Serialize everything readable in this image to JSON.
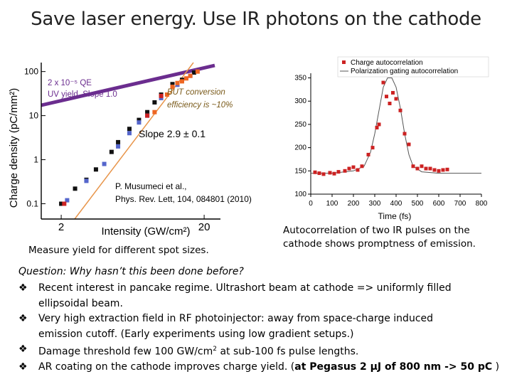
{
  "slide": {
    "title": "Save laser energy. Use IR photons on the cathode",
    "left_caption": "Measure yield for different spot sizes.",
    "right_caption_line1": "Autocorrelation of two IR pulses on the",
    "right_caption_line2": "cathode shows promptness of emission.",
    "question": "Question: Why hasn’t this been done before?",
    "bullet_marker": "❖",
    "bullets": [
      {
        "line1": "Recent interest in pancake regime. Ultrashort beam at cathode => uniformly filled",
        "line2": "ellipsoidal beam."
      },
      {
        "line1": "Very high extraction field in RF photoinjector: away from space-charge induced",
        "line2": "emission cutoff. (Early experiments using low gradient setups.)"
      },
      {
        "line1a": "Damage threshold few 100 GW/cm",
        "sup": "2",
        "line1b": " at sub-100 fs pulse lengths."
      },
      {
        "line1a": "AR coating on the cathode improves charge yield. (",
        "bold": "at Pegasus 2 μJ of 800 nm -> 50 pC",
        "line1b": " )"
      }
    ]
  },
  "chart_data": [
    {
      "type": "scatter",
      "xlabel": "Intensity (GW/cm²)",
      "ylabel": "Charge density (pC/mm²)",
      "xscale": "log",
      "yscale": "log",
      "x_tick_labels": [
        "2",
        "20"
      ],
      "y_tick_labels": [
        "100",
        "10",
        "1",
        "0.1"
      ],
      "ylim": [
        0.05,
        130
      ],
      "annotations": {
        "qe_line1": "2 x 10⁻⁵ QE",
        "qe_line2": "UV yield. Slope 1.0",
        "slope_text": "Slope 2.9 ± 0.1",
        "conv_line1": "BUT conversion",
        "conv_line2": "efficiency is ~10%",
        "ref_line1": "P. Musumeci et al.,",
        "ref_line2": "Phys. Rev. Lett, 104, 084801 (2010)"
      },
      "fit_lines": [
        {
          "name": "UV yield slope 1.0",
          "color": "#6b2d8f"
        },
        {
          "name": "Slope 2.9",
          "color": "#e8954a"
        }
      ],
      "series": [
        {
          "group": "black",
          "color": "#111111",
          "points": [
            [
              2.0,
              0.1
            ],
            [
              2.5,
              0.22
            ],
            [
              3,
              0.35
            ],
            [
              3.5,
              0.6
            ],
            [
              4.5,
              1.5
            ],
            [
              5,
              2.5
            ],
            [
              6,
              5
            ],
            [
              7,
              8
            ],
            [
              8,
              12
            ],
            [
              9,
              20
            ],
            [
              10,
              30
            ],
            [
              12,
              52
            ],
            [
              14,
              65
            ],
            [
              17,
              95
            ]
          ]
        },
        {
          "group": "blue",
          "color": "#5566cc",
          "points": [
            [
              2.2,
              0.12
            ],
            [
              3,
              0.33
            ],
            [
              4,
              0.8
            ],
            [
              5,
              2
            ],
            [
              6,
              4
            ],
            [
              7,
              7
            ],
            [
              8,
              10
            ],
            [
              10,
              25
            ],
            [
              13,
              50
            ],
            [
              16,
              80
            ]
          ]
        },
        {
          "group": "orange",
          "color": "#ee6622",
          "points": [
            [
              9,
              12
            ],
            [
              11,
              30
            ],
            [
              12,
              45
            ],
            [
              13,
              55
            ],
            [
              14,
              60
            ],
            [
              15,
              70
            ],
            [
              16,
              80
            ],
            [
              18,
              100
            ]
          ]
        },
        {
          "group": "red",
          "color": "#cc2222",
          "points": [
            [
              2.1,
              0.1
            ],
            [
              8,
              10
            ],
            [
              10,
              28
            ]
          ]
        }
      ]
    },
    {
      "type": "scatter",
      "xlabel": "Time (fs)",
      "x": [
        0,
        100,
        200,
        300,
        400,
        500,
        600,
        700,
        800
      ],
      "x_tick_labels": [
        "0",
        "100",
        "200",
        "300",
        "400",
        "500",
        "600",
        "700",
        "800"
      ],
      "y_tick_labels": [
        "350",
        "300",
        "250",
        "200",
        "150",
        "100"
      ],
      "xlim": [
        0,
        800
      ],
      "ylim": [
        100,
        360
      ],
      "legend_position": "top-right",
      "series": [
        {
          "name": "Charge autocorrelation",
          "color": "#cc2222",
          "points": [
            [
              20,
              147
            ],
            [
              40,
              145
            ],
            [
              60,
              143
            ],
            [
              90,
              146
            ],
            [
              110,
              144
            ],
            [
              130,
              148
            ],
            [
              160,
              150
            ],
            [
              180,
              155
            ],
            [
              200,
              158
            ],
            [
              220,
              152
            ],
            [
              240,
              160
            ],
            [
              270,
              185
            ],
            [
              290,
              200
            ],
            [
              310,
              243
            ],
            [
              320,
              250
            ],
            [
              340,
              340
            ],
            [
              355,
              310
            ],
            [
              370,
              295
            ],
            [
              385,
              318
            ],
            [
              400,
              305
            ],
            [
              420,
              280
            ],
            [
              440,
              230
            ],
            [
              460,
              207
            ],
            [
              480,
              160
            ],
            [
              500,
              155
            ],
            [
              520,
              160
            ],
            [
              540,
              155
            ],
            [
              560,
              155
            ],
            [
              580,
              152
            ],
            [
              600,
              150
            ],
            [
              620,
              152
            ],
            [
              640,
              153
            ]
          ]
        },
        {
          "name": "Polarization gating autocorrelation",
          "color": "#555555",
          "curve": [
            [
              0,
              145
            ],
            [
              100,
              145
            ],
            [
              200,
              150
            ],
            [
              250,
              160
            ],
            [
              280,
              190
            ],
            [
              300,
              230
            ],
            [
              320,
              280
            ],
            [
              340,
              330
            ],
            [
              360,
              350
            ],
            [
              380,
              350
            ],
            [
              400,
              330
            ],
            [
              420,
              285
            ],
            [
              440,
              230
            ],
            [
              460,
              185
            ],
            [
              480,
              160
            ],
            [
              520,
              148
            ],
            [
              600,
              145
            ],
            [
              800,
              145
            ]
          ]
        }
      ]
    }
  ]
}
